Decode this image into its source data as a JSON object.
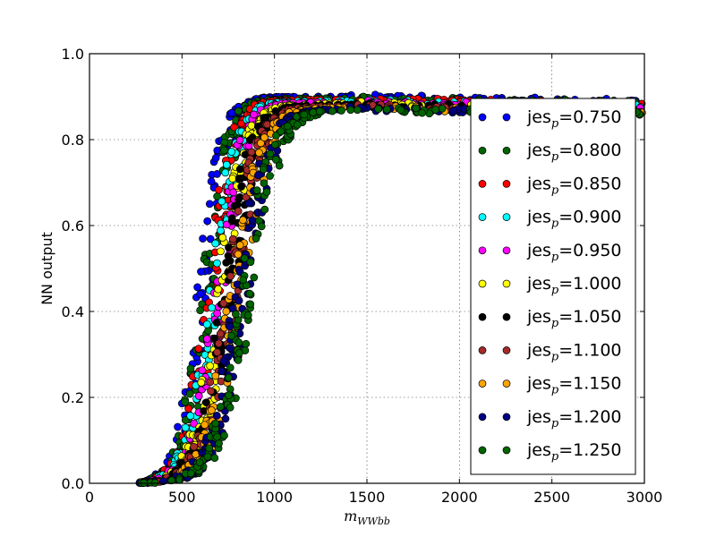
{
  "chart_data": {
    "type": "scatter",
    "xlabel": "m",
    "xlabel_sub": "WWbb",
    "ylabel": "NN output",
    "xlim": [
      0,
      3000
    ],
    "ylim": [
      0.0,
      1.0
    ],
    "xticks": [
      0,
      500,
      1000,
      1500,
      2000,
      2500,
      3000
    ],
    "xtick_labels": [
      "0",
      "500",
      "1000",
      "1500",
      "2000",
      "2500",
      "3000"
    ],
    "yticks": [
      0.0,
      0.2,
      0.4,
      0.6,
      0.8,
      1.0
    ],
    "ytick_labels": [
      "0.0",
      "0.2",
      "0.4",
      "0.6",
      "0.8",
      "1.0"
    ],
    "grid": true,
    "legend_position": "right",
    "series": [
      {
        "name": "jes=0.750",
        "label_base": "jes",
        "label_sub": "p",
        "label_value": "=0.750",
        "color": "#0000ff",
        "midpoint": 620,
        "width": 60,
        "top": 0.9
      },
      {
        "name": "jes=0.800",
        "label_base": "jes",
        "label_sub": "p",
        "label_value": "=0.800",
        "color": "#006400",
        "midpoint": 640,
        "width": 62,
        "top": 0.896
      },
      {
        "name": "jes=0.850",
        "label_base": "jes",
        "label_sub": "p",
        "label_value": "=0.850",
        "color": "#ff0000",
        "midpoint": 660,
        "width": 64,
        "top": 0.893
      },
      {
        "name": "jes=0.900",
        "label_base": "jes",
        "label_sub": "p",
        "label_value": "=0.900",
        "color": "#00ffff",
        "midpoint": 680,
        "width": 66,
        "top": 0.89
      },
      {
        "name": "jes=0.950",
        "label_base": "jes",
        "label_sub": "p",
        "label_value": "=0.950",
        "color": "#ff00ff",
        "midpoint": 700,
        "width": 68,
        "top": 0.887
      },
      {
        "name": "jes=1.000",
        "label_base": "jes",
        "label_sub": "p",
        "label_value": "=1.000",
        "color": "#ffff00",
        "midpoint": 720,
        "width": 70,
        "top": 0.884
      },
      {
        "name": "jes=1.050",
        "label_base": "jes",
        "label_sub": "p",
        "label_value": "=1.050",
        "color": "#000000",
        "midpoint": 745,
        "width": 72,
        "top": 0.881
      },
      {
        "name": "jes=1.100",
        "label_base": "jes",
        "label_sub": "p",
        "label_value": "=1.100",
        "color": "#a52a2a",
        "midpoint": 770,
        "width": 74,
        "top": 0.878
      },
      {
        "name": "jes=1.150",
        "label_base": "jes",
        "label_sub": "p",
        "label_value": "=1.150",
        "color": "#ffa500",
        "midpoint": 795,
        "width": 76,
        "top": 0.875
      },
      {
        "name": "jes=1.200",
        "label_base": "jes",
        "label_sub": "p",
        "label_value": "=1.200",
        "color": "#000080",
        "midpoint": 820,
        "width": 78,
        "top": 0.872
      },
      {
        "name": "jes=1.250",
        "label_base": "jes",
        "label_sub": "p",
        "label_value": "=1.250",
        "color": "#006400",
        "midpoint": 845,
        "width": 80,
        "top": 0.87
      }
    ]
  }
}
